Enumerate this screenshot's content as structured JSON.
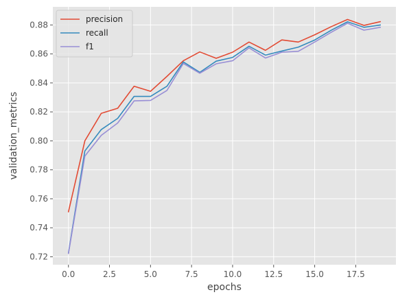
{
  "chart_data": {
    "type": "line",
    "title": "",
    "xlabel": "epochs",
    "ylabel": "validation_metrics",
    "xlim": [
      -0.95,
      19.95
    ],
    "ylim": [
      0.7145,
      0.8925
    ],
    "xticks": [
      0.0,
      2.5,
      5.0,
      7.5,
      10.0,
      12.5,
      15.0,
      17.5
    ],
    "xtick_labels": [
      "0.0",
      "2.5",
      "5.0",
      "7.5",
      "10.0",
      "12.5",
      "15.0",
      "17.5"
    ],
    "yticks": [
      0.72,
      0.74,
      0.76,
      0.78,
      0.8,
      0.82,
      0.84,
      0.86,
      0.88
    ],
    "ytick_labels": [
      "0.72",
      "0.74",
      "0.76",
      "0.78",
      "0.80",
      "0.82",
      "0.84",
      "0.86",
      "0.88"
    ],
    "grid": true,
    "legend_position": "top-left",
    "x": [
      0,
      1,
      2,
      3,
      4,
      5,
      6,
      7,
      8,
      9,
      10,
      11,
      12,
      13,
      14,
      15,
      16,
      17,
      18,
      19
    ],
    "series": [
      {
        "name": "precision",
        "color": "#E24A33",
        "values": [
          0.751,
          0.8,
          0.819,
          0.8225,
          0.8377,
          0.8342,
          0.8445,
          0.8553,
          0.8614,
          0.857,
          0.8612,
          0.8682,
          0.8625,
          0.8697,
          0.8682,
          0.8732,
          0.8788,
          0.8838,
          0.8797,
          0.8823
        ]
      },
      {
        "name": "recall",
        "color": "#348ABD",
        "values": [
          0.7225,
          0.793,
          0.8078,
          0.8155,
          0.8307,
          0.8307,
          0.8377,
          0.8545,
          0.8473,
          0.855,
          0.8576,
          0.8653,
          0.8592,
          0.862,
          0.8647,
          0.8696,
          0.8763,
          0.8822,
          0.8784,
          0.88
        ]
      },
      {
        "name": "f1",
        "color": "#988ED5",
        "values": [
          0.7222,
          0.7895,
          0.8038,
          0.8123,
          0.8276,
          0.8279,
          0.8348,
          0.8534,
          0.8467,
          0.8532,
          0.8553,
          0.8642,
          0.8572,
          0.8612,
          0.8618,
          0.8682,
          0.8749,
          0.8812,
          0.8764,
          0.8784
        ]
      }
    ]
  }
}
